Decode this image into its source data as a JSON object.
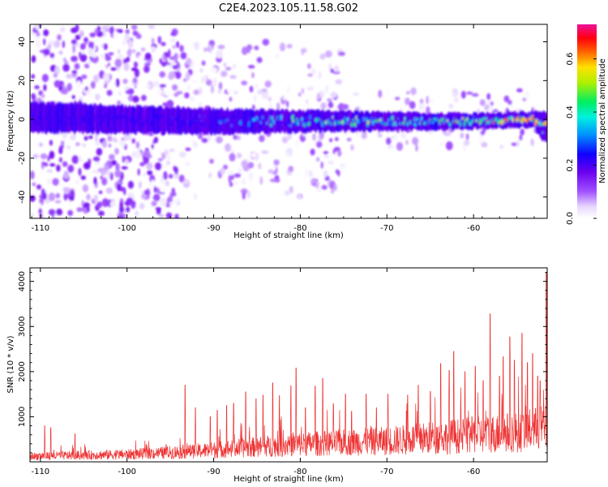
{
  "chart_data": [
    {
      "type": "heatmap",
      "title": "C2E4.2023.105.11.58.G02",
      "xlabel": "Height of straight line (km)",
      "ylabel": "Frequency (Hz)",
      "xlim": [
        -111.2,
        -51.5
      ],
      "ylim": [
        -51,
        49
      ],
      "xticks": [
        -110,
        -100,
        -90,
        -80,
        -70,
        -60
      ],
      "yticks": [
        40,
        20,
        0,
        -20,
        -40
      ],
      "colorbar": {
        "label": "Normalized spectral amplitude",
        "range": [
          0,
          0.73
        ],
        "ticks": [
          0.0,
          0.2,
          0.4,
          0.6
        ],
        "colormap": "white-purple-blue-cyan-green-yellow-red-magenta"
      },
      "band": {
        "center_hz": [
          [
            -111,
            1
          ],
          [
            -100,
            0
          ],
          [
            -90,
            -1
          ],
          [
            -80,
            -1
          ],
          [
            -70,
            -1
          ],
          [
            -60,
            -1
          ],
          [
            -53,
            0
          ],
          [
            -52,
            -4
          ]
        ],
        "half_width_hz": [
          [
            -111,
            6
          ],
          [
            -90,
            5
          ],
          [
            -75,
            4
          ],
          [
            -60,
            3
          ],
          [
            -53,
            3
          ],
          [
            -52,
            6
          ]
        ],
        "peak_amplitude": [
          [
            -111,
            0.2
          ],
          [
            -95,
            0.25
          ],
          [
            -88,
            0.33
          ],
          [
            -80,
            0.5
          ],
          [
            -72,
            0.55
          ],
          [
            -65,
            0.5
          ],
          [
            -60,
            0.62
          ],
          [
            -56,
            0.7
          ],
          [
            -53,
            0.72
          ]
        ]
      },
      "noise_regions": [
        {
          "x_range": [
            -111,
            -94
          ],
          "y_range": [
            -51,
            49
          ],
          "density": "high"
        },
        {
          "x_range": [
            -94,
            -75
          ],
          "y_range": [
            -40,
            40
          ],
          "density": "medium"
        },
        {
          "x_range": [
            -75,
            -52
          ],
          "y_range": [
            -15,
            15
          ],
          "density": "low"
        }
      ]
    },
    {
      "type": "line",
      "title": "",
      "xlabel": "Height of straight line (km)",
      "ylabel": "SNR (10 * v/v)",
      "xlim": [
        -111.2,
        -51.5
      ],
      "ylim": [
        0,
        4300
      ],
      "xticks": [
        -110,
        -100,
        -90,
        -80,
        -70,
        -60
      ],
      "yticks": [
        1000,
        2000,
        3000,
        4000
      ],
      "series": [
        {
          "color": "#ee3333",
          "baseline": [
            [
              -111,
              150
            ],
            [
              -100,
              200
            ],
            [
              -94,
              260
            ],
            [
              -90,
              320
            ],
            [
              -85,
              400
            ],
            [
              -80,
              470
            ],
            [
              -75,
              520
            ],
            [
              -70,
              560
            ],
            [
              -65,
              640
            ],
            [
              -60,
              720
            ],
            [
              -55,
              800
            ],
            [
              -52,
              900
            ]
          ],
          "peaks": [
            [
              -109.5,
              800
            ],
            [
              -108.8,
              760
            ],
            [
              -106,
              620
            ],
            [
              -93.3,
              1700
            ],
            [
              -92.1,
              1200
            ],
            [
              -90.4,
              1000
            ],
            [
              -89.6,
              1140
            ],
            [
              -88.5,
              1250
            ],
            [
              -87.7,
              1300
            ],
            [
              -86.3,
              1550
            ],
            [
              -85.1,
              1400
            ],
            [
              -84.3,
              1480
            ],
            [
              -83.2,
              1750
            ],
            [
              -82.4,
              1470
            ],
            [
              -81.1,
              1690
            ],
            [
              -80.5,
              2080
            ],
            [
              -79.4,
              1200
            ],
            [
              -78.3,
              1680
            ],
            [
              -77.4,
              1850
            ],
            [
              -76.2,
              1290
            ],
            [
              -74.8,
              1500
            ],
            [
              -74.1,
              1120
            ],
            [
              -72.4,
              1500
            ],
            [
              -71.2,
              1200
            ],
            [
              -69.9,
              1500
            ],
            [
              -67.6,
              1480
            ],
            [
              -66.4,
              1700
            ],
            [
              -65,
              1560
            ],
            [
              -63.8,
              2180
            ],
            [
              -62.8,
              2030
            ],
            [
              -62.3,
              2450
            ],
            [
              -61,
              2000
            ],
            [
              -59.8,
              2120
            ],
            [
              -58.9,
              1800
            ],
            [
              -58.1,
              3280
            ],
            [
              -57,
              1900
            ],
            [
              -56.6,
              2330
            ],
            [
              -55.8,
              2770
            ],
            [
              -55.3,
              2250
            ],
            [
              -54.4,
              2850
            ],
            [
              -53.8,
              2200
            ],
            [
              -53.2,
              2400
            ],
            [
              -52.6,
              1900
            ],
            [
              -52.3,
              1800
            ],
            [
              -51.6,
              4200
            ]
          ]
        }
      ]
    }
  ]
}
